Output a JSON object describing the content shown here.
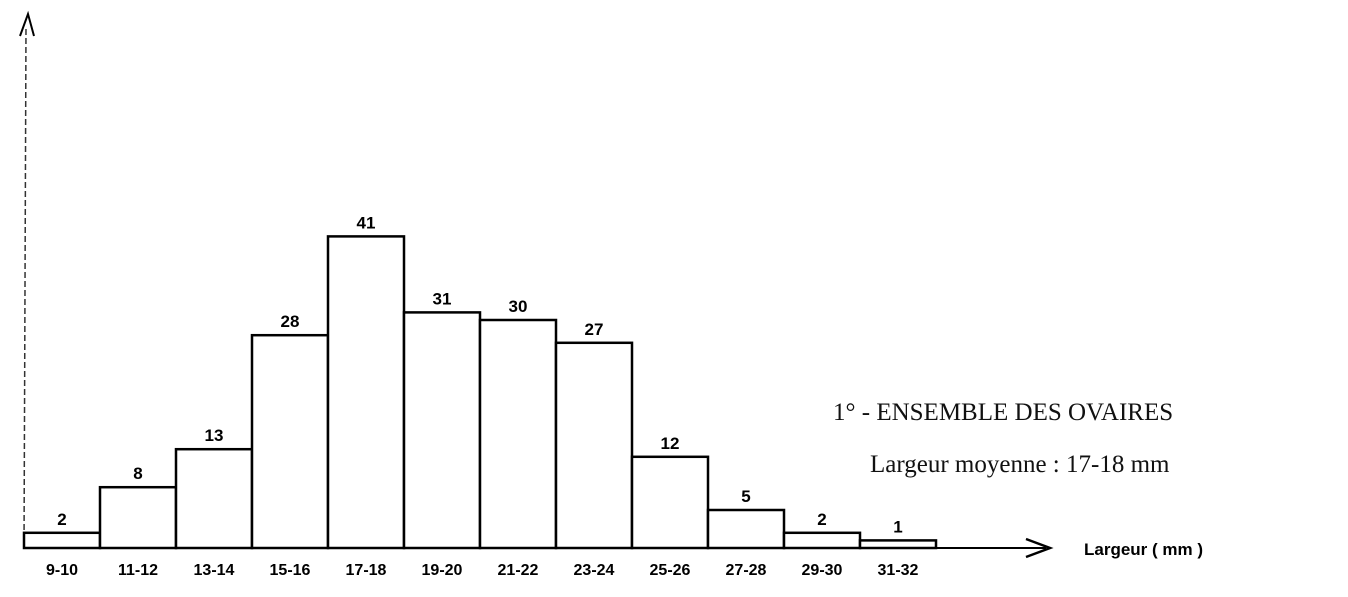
{
  "chart_data": {
    "type": "bar",
    "categories": [
      "9-10",
      "11-12",
      "13-14",
      "15-16",
      "17-18",
      "19-20",
      "21-22",
      "23-24",
      "25-26",
      "27-28",
      "29-30",
      "31-32"
    ],
    "values": [
      2,
      8,
      13,
      28,
      41,
      31,
      30,
      27,
      12,
      5,
      2,
      1
    ],
    "xlabel": "Largeur ( mm )",
    "ylabel": "",
    "ylim": [
      0,
      80
    ],
    "grid": false,
    "annotation": {
      "title": "1° - ENSEMBLE DES OVAIRES",
      "subtitle": "Largeur moyenne : 17-18 mm"
    },
    "colors": {
      "bar_fill": "#ffffff",
      "bar_stroke": "#000000"
    }
  }
}
